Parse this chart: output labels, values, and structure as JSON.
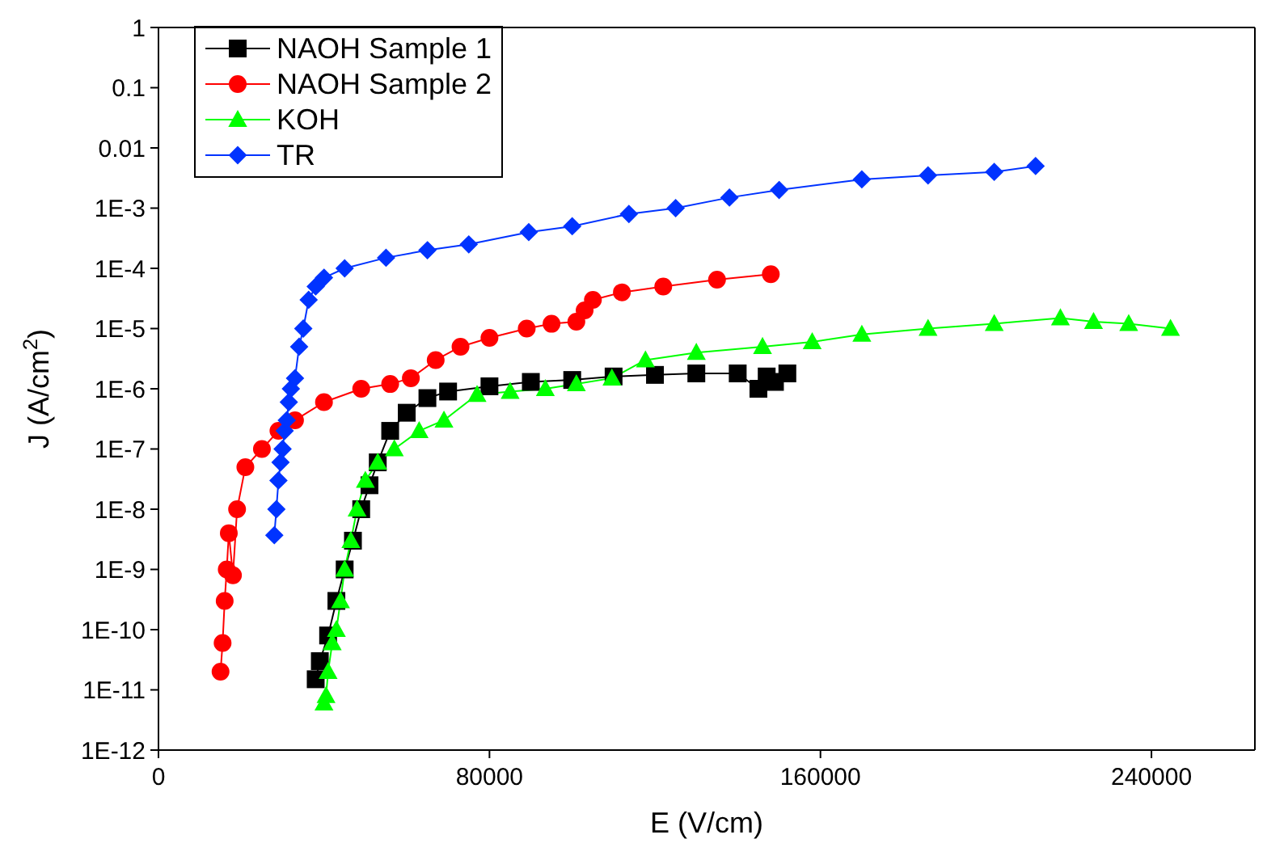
{
  "chart_data": {
    "type": "line",
    "xlabel": "E (V/cm)",
    "ylabel": "J (A/cm$^{2}$)",
    "log": "y",
    "xlim": [
      0,
      265000
    ],
    "xticks": [
      0,
      80000,
      160000,
      240000
    ],
    "ylim": [
      1e-12,
      1
    ],
    "yticks": [
      {
        "value": 1e-12,
        "label": "1E-12"
      },
      {
        "value": 1e-11,
        "label": "1E-11"
      },
      {
        "value": 1e-10,
        "label": "1E-10"
      },
      {
        "value": 1e-09,
        "label": "1E-9"
      },
      {
        "value": 1e-08,
        "label": "1E-8"
      },
      {
        "value": 1e-07,
        "label": "1E-7"
      },
      {
        "value": 1e-06,
        "label": "1E-6"
      },
      {
        "value": 1e-05,
        "label": "1E-5"
      },
      {
        "value": 0.0001,
        "label": "1E-4"
      },
      {
        "value": 0.001,
        "label": "1E-3"
      },
      {
        "value": 0.01,
        "label": "0.01"
      },
      {
        "value": 0.1,
        "label": "0.1"
      },
      {
        "value": 1,
        "label": "1"
      }
    ],
    "grid": false,
    "legend": "top left",
    "series": [
      {
        "name": "NAOH Sample 1",
        "color": "#000000",
        "marker": "square",
        "x": [
          38000,
          39000,
          41000,
          43000,
          45000,
          47000,
          49000,
          51000,
          53000,
          56000,
          60000,
          65000,
          70000,
          80000,
          90000,
          100000,
          110000,
          120000,
          130000,
          140000,
          145000,
          147000,
          149000,
          152000
        ],
        "values": [
          1.5e-11,
          3e-11,
          8e-11,
          3e-10,
          1e-09,
          3e-09,
          1e-08,
          2.5e-08,
          6e-08,
          2e-07,
          4e-07,
          7e-07,
          9e-07,
          1.1e-06,
          1.3e-06,
          1.4e-06,
          1.6e-06,
          1.7e-06,
          1.8e-06,
          1.8e-06,
          1e-06,
          1.6e-06,
          1.3e-06,
          1.8e-06
        ]
      },
      {
        "name": "NAOH Sample 2",
        "color": "#ff0000",
        "marker": "circle",
        "x": [
          15000,
          15500,
          16000,
          16500,
          17000,
          18000,
          19000,
          21000,
          25000,
          29000,
          33000,
          40000,
          49000,
          56000,
          61000,
          67000,
          73000,
          80000,
          89000,
          95000,
          101000,
          103000,
          105000,
          112000,
          122000,
          135000,
          148000
        ],
        "values": [
          2e-11,
          6e-11,
          3e-10,
          1e-09,
          4e-09,
          8e-10,
          1e-08,
          5e-08,
          1e-07,
          2e-07,
          3e-07,
          6e-07,
          1e-06,
          1.2e-06,
          1.5e-06,
          3e-06,
          5e-06,
          7e-06,
          1e-05,
          1.2e-05,
          1.3e-05,
          2e-05,
          3e-05,
          4e-05,
          5e-05,
          6.5e-05,
          8e-05
        ]
      },
      {
        "name": "KOH",
        "color": "#00ff00",
        "marker": "triangle",
        "x": [
          40000,
          40500,
          41000,
          42000,
          43000,
          44000,
          45000,
          46500,
          48000,
          50000,
          53000,
          57000,
          63000,
          69000,
          77000,
          85000,
          93500,
          101000,
          109600,
          117700,
          130000,
          146000,
          158000,
          170000,
          186000,
          202000,
          218000,
          226000,
          234500,
          244600
        ],
        "values": [
          6e-12,
          8e-12,
          2e-11,
          6e-11,
          1e-10,
          3e-10,
          1e-09,
          3e-09,
          1e-08,
          3e-08,
          6e-08,
          1e-07,
          2e-07,
          3e-07,
          8e-07,
          9e-07,
          1e-06,
          1.2e-06,
          1.5e-06,
          3e-06,
          4e-06,
          5e-06,
          6e-06,
          8e-06,
          1e-05,
          1.2e-05,
          1.5e-05,
          1.3e-05,
          1.2e-05,
          1e-05
        ]
      },
      {
        "name": "TR",
        "color": "#0033ff",
        "marker": "diamond",
        "x": [
          28000,
          28500,
          29000,
          29500,
          30000,
          30500,
          31000,
          31500,
          32000,
          33000,
          34000,
          35000,
          36300,
          38000,
          40000,
          45000,
          55000,
          65000,
          75000,
          89500,
          100000,
          113700,
          125000,
          138000,
          150000,
          170000,
          186000,
          202000,
          212000
        ],
        "values": [
          3.7e-09,
          1e-08,
          3e-08,
          6e-08,
          1e-07,
          2e-07,
          3e-07,
          6e-07,
          1e-06,
          1.5e-06,
          5e-06,
          1e-05,
          3e-05,
          5e-05,
          7e-05,
          0.0001,
          0.00015,
          0.0002,
          0.00025,
          0.0004,
          0.0005,
          0.0008,
          0.001,
          0.0015,
          0.002,
          0.003,
          0.0035,
          0.004,
          0.005
        ]
      }
    ]
  }
}
